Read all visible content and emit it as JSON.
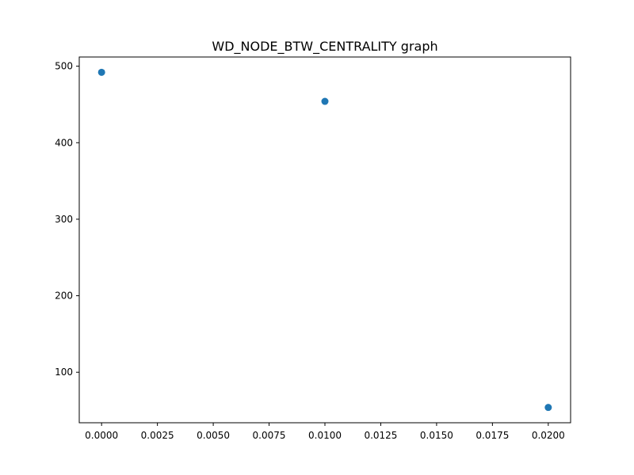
{
  "chart_data": {
    "type": "scatter",
    "title": "WD_NODE_BTW_CENTRALITY graph",
    "xlabel": "",
    "ylabel": "",
    "points": [
      {
        "x": 0.0,
        "y": 492
      },
      {
        "x": 0.01,
        "y": 454
      },
      {
        "x": 0.02,
        "y": 54
      }
    ],
    "xlim": [
      -0.001,
      0.021
    ],
    "ylim": [
      34,
      512
    ],
    "xticks": [
      {
        "value": 0.0,
        "label": "0.0000"
      },
      {
        "value": 0.0025,
        "label": "0.0025"
      },
      {
        "value": 0.005,
        "label": "0.0050"
      },
      {
        "value": 0.0075,
        "label": "0.0075"
      },
      {
        "value": 0.01,
        "label": "0.0100"
      },
      {
        "value": 0.0125,
        "label": "0.0125"
      },
      {
        "value": 0.015,
        "label": "0.0150"
      },
      {
        "value": 0.0175,
        "label": "0.0175"
      },
      {
        "value": 0.02,
        "label": "0.0200"
      }
    ],
    "yticks": [
      {
        "value": 100,
        "label": "100"
      },
      {
        "value": 200,
        "label": "200"
      },
      {
        "value": 300,
        "label": "300"
      },
      {
        "value": 400,
        "label": "400"
      },
      {
        "value": 500,
        "label": "500"
      }
    ],
    "grid": false,
    "legend": "none",
    "marker_color": "#1f77b4"
  }
}
